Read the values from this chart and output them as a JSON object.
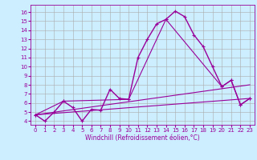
{
  "xlabel": "Windchill (Refroidissement éolien,°C)",
  "background_color": "#cceeff",
  "line_color": "#990099",
  "grid_color": "#aaaaaa",
  "xlim": [
    -0.5,
    23.5
  ],
  "ylim": [
    3.6,
    16.8
  ],
  "yticks": [
    4,
    5,
    6,
    7,
    8,
    9,
    10,
    11,
    12,
    13,
    14,
    15,
    16
  ],
  "xticks": [
    0,
    1,
    2,
    3,
    4,
    5,
    6,
    7,
    8,
    9,
    10,
    11,
    12,
    13,
    14,
    15,
    16,
    17,
    18,
    19,
    20,
    21,
    22,
    23
  ],
  "series1_x": [
    0,
    1,
    2,
    3,
    4,
    5,
    6,
    7,
    8,
    9,
    10,
    11,
    12,
    13,
    14,
    15,
    16,
    17,
    18,
    19,
    20,
    21,
    22,
    23
  ],
  "series1_y": [
    4.7,
    4.0,
    5.0,
    6.2,
    5.5,
    4.0,
    5.3,
    5.2,
    7.5,
    6.5,
    6.4,
    11.0,
    13.0,
    14.7,
    15.2,
    16.1,
    15.5,
    13.5,
    12.2,
    10.0,
    7.8,
    8.5,
    5.8,
    6.5
  ],
  "series2_x": [
    0,
    3,
    10,
    14,
    20,
    21,
    22,
    23
  ],
  "series2_y": [
    4.7,
    6.2,
    6.4,
    15.2,
    7.8,
    8.5,
    5.8,
    6.5
  ],
  "series3_x": [
    0,
    23
  ],
  "series3_y": [
    4.7,
    8.0
  ],
  "series4_x": [
    0,
    23
  ],
  "series4_y": [
    4.7,
    6.5
  ],
  "xlabel_fontsize": 5.5,
  "tick_fontsize": 5.0,
  "linewidth1": 1.0,
  "linewidth2": 0.8,
  "marker_size": 3.0
}
